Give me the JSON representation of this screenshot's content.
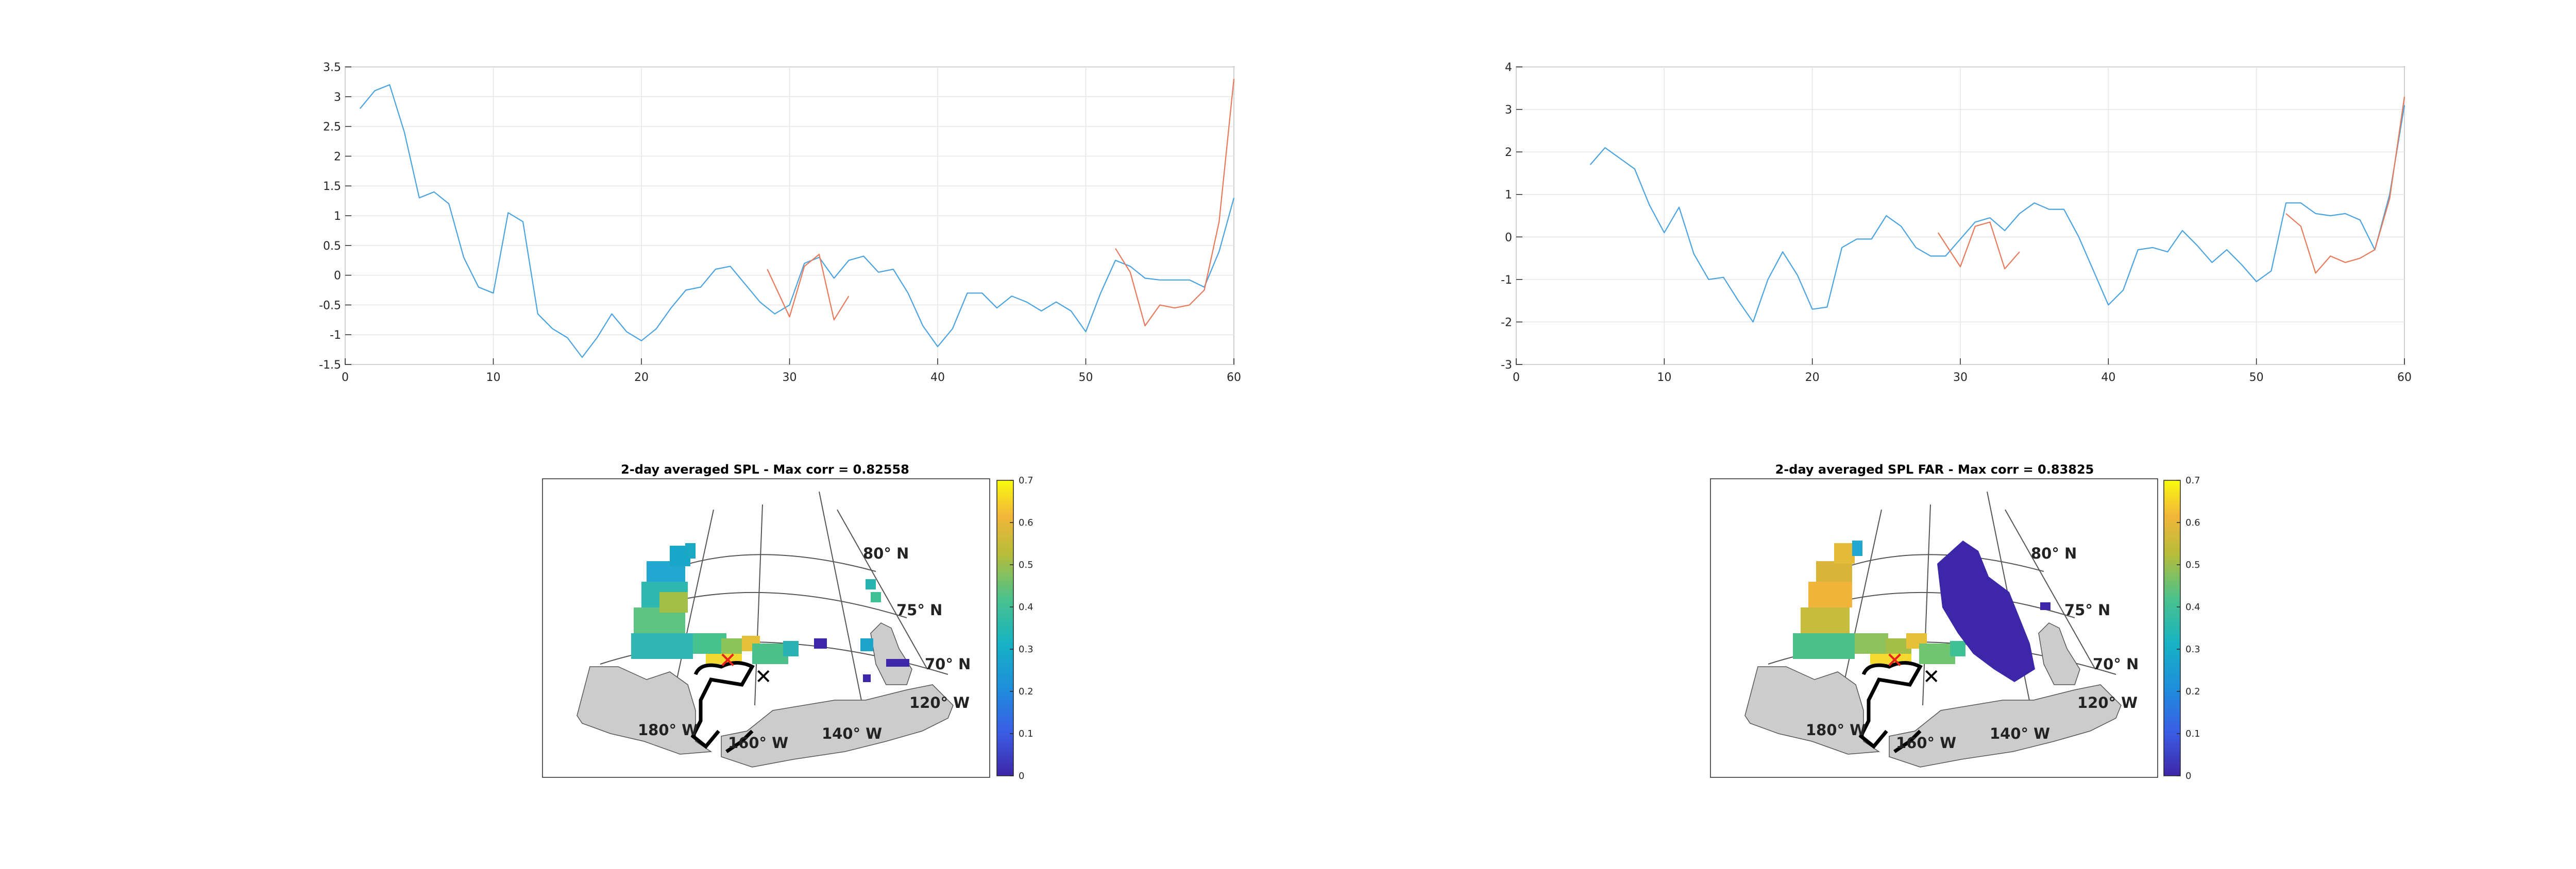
{
  "chart_data": [
    {
      "type": "line",
      "panel": "top-left",
      "xlim": [
        0,
        60
      ],
      "ylim": [
        -1.5,
        3.5
      ],
      "xticks": [
        0,
        10,
        20,
        30,
        40,
        50,
        60
      ],
      "yticks": [
        -1.5,
        -1,
        -0.5,
        0,
        0.5,
        1,
        1.5,
        2,
        2.5,
        3,
        3.5
      ],
      "xtick_labels": [
        "0",
        "10",
        "20",
        "30",
        "40",
        "50",
        "60"
      ],
      "ytick_labels": [
        "-1.5",
        "-1",
        "-0.5",
        "0",
        "0.5",
        "1",
        "1.5",
        "2",
        "2.5",
        "3",
        "3.5"
      ],
      "grid": true,
      "series": [
        {
          "color": "#4aa3df",
          "x": [
            1,
            2,
            3,
            4,
            5,
            6,
            7,
            8,
            9,
            10,
            11,
            12,
            13,
            14,
            15,
            16,
            17,
            18,
            19,
            20,
            21,
            22,
            23,
            24,
            25,
            26,
            27,
            28,
            29,
            30,
            31,
            32,
            33,
            34,
            35,
            36,
            37,
            38,
            39,
            40,
            41,
            42,
            43,
            44,
            45,
            46,
            47,
            48,
            49,
            50,
            51,
            52,
            53,
            54,
            55,
            56,
            57,
            58,
            59,
            60
          ],
          "y": [
            2.8,
            3.1,
            3.2,
            2.4,
            1.3,
            1.4,
            1.2,
            0.3,
            -0.2,
            -0.3,
            1.05,
            0.9,
            -0.65,
            -0.9,
            -1.05,
            -1.38,
            -1.05,
            -0.65,
            -0.95,
            -1.1,
            -0.9,
            -0.55,
            -0.25,
            -0.2,
            0.1,
            0.15,
            -0.15,
            -0.45,
            -0.65,
            -0.5,
            0.2,
            0.3,
            -0.05,
            0.25,
            0.32,
            0.05,
            0.1,
            -0.3,
            -0.85,
            -1.2,
            -0.9,
            -0.3,
            -0.3,
            -0.55,
            -0.35,
            -0.45,
            -0.6,
            -0.45,
            -0.6,
            -0.95,
            -0.3,
            0.25,
            0.15,
            -0.05,
            -0.08,
            -0.08,
            -0.08,
            -0.2,
            0.4,
            1.3
          ]
        },
        {
          "color": "#e8795a",
          "x": [
            28.5,
            30,
            31,
            32,
            33,
            34
          ],
          "y": [
            0.1,
            -0.7,
            0.15,
            0.35,
            -0.75,
            -0.35
          ]
        },
        {
          "color": "#e8795a",
          "x": [
            52,
            53,
            54,
            55,
            56,
            57,
            58,
            59,
            60
          ],
          "y": [
            0.45,
            0.05,
            -0.85,
            -0.5,
            -0.55,
            -0.5,
            -0.25,
            0.9,
            3.3
          ]
        }
      ]
    },
    {
      "type": "line",
      "panel": "top-right",
      "xlim": [
        0,
        60
      ],
      "ylim": [
        -3,
        4
      ],
      "xticks": [
        0,
        10,
        20,
        30,
        40,
        50,
        60
      ],
      "yticks": [
        -3,
        -2,
        -1,
        0,
        1,
        2,
        3,
        4
      ],
      "xtick_labels": [
        "0",
        "10",
        "20",
        "30",
        "40",
        "50",
        "60"
      ],
      "ytick_labels": [
        "-3",
        "-2",
        "-1",
        "0",
        "1",
        "2",
        "3",
        "4"
      ],
      "grid": true,
      "series": [
        {
          "color": "#4aa3df",
          "x": [
            5,
            6,
            7,
            8,
            9,
            10,
            11,
            12,
            13,
            14,
            15,
            16,
            17,
            18,
            19,
            20,
            21,
            22,
            23,
            24,
            25,
            26,
            27,
            28,
            29,
            30,
            31,
            32,
            33,
            34,
            35,
            36,
            37,
            38,
            39,
            40,
            41,
            42,
            43,
            44,
            45,
            46,
            47,
            48,
            49,
            50,
            51,
            52,
            53,
            54,
            55,
            56,
            57,
            58,
            59,
            60
          ],
          "y": [
            1.7,
            2.1,
            1.85,
            1.6,
            0.75,
            0.1,
            0.7,
            -0.4,
            -1.0,
            -0.95,
            -1.5,
            -2.0,
            -1.0,
            -0.35,
            -0.9,
            -1.7,
            -1.65,
            -0.25,
            -0.05,
            -0.05,
            0.5,
            0.25,
            -0.25,
            -0.45,
            -0.45,
            -0.05,
            0.35,
            0.45,
            0.15,
            0.55,
            0.8,
            0.65,
            0.65,
            0.0,
            -0.8,
            -1.6,
            -1.25,
            -0.3,
            -0.25,
            -0.35,
            0.15,
            -0.2,
            -0.6,
            -0.3,
            -0.65,
            -1.05,
            -0.8,
            0.8,
            0.8,
            0.55,
            0.5,
            0.55,
            0.4,
            -0.3,
            1.0,
            3.1
          ]
        },
        {
          "color": "#e8795a",
          "x": [
            28.5,
            30,
            31,
            32,
            33,
            34
          ],
          "y": [
            0.1,
            -0.7,
            0.25,
            0.35,
            -0.75,
            -0.35
          ]
        },
        {
          "color": "#e8795a",
          "x": [
            52,
            53,
            54,
            55,
            56,
            57,
            58,
            59,
            60
          ],
          "y": [
            0.55,
            0.25,
            -0.85,
            -0.45,
            -0.6,
            -0.5,
            -0.3,
            0.9,
            3.3
          ]
        }
      ]
    },
    {
      "type": "heatmap",
      "panel": "bottom-left",
      "title": "2-day averaged SPL - Max corr = 0.82558",
      "colorbar": {
        "min": 0,
        "max": 0.7,
        "ticks": [
          "0",
          "0.1",
          "0.2",
          "0.3",
          "0.4",
          "0.5",
          "0.6",
          "0.7"
        ]
      },
      "grid_labels": [
        "80° N",
        "75° N",
        "70° N",
        "120° W",
        "140° W",
        "160° W",
        "180° W"
      ]
    },
    {
      "type": "heatmap",
      "panel": "bottom-right",
      "title": "2-day averaged SPL FAR - Max corr = 0.83825",
      "colorbar": {
        "min": 0,
        "max": 0.7,
        "ticks": [
          "0",
          "0.1",
          "0.2",
          "0.3",
          "0.4",
          "0.5",
          "0.6",
          "0.7"
        ]
      },
      "grid_labels": [
        "80° N",
        "75° N",
        "70° N",
        "120° W",
        "140° W",
        "160° W",
        "180° W"
      ]
    }
  ],
  "colors": {
    "blue_series": "#4aa3df",
    "orange_series": "#e8795a",
    "land": "#cccccc",
    "coast": "#000000",
    "map_low": "#3e26a8",
    "map_mid": "#35b779",
    "map_high": "#f9fb0e",
    "x_marker_red": "#e8231c",
    "x_marker_black": "#000000"
  }
}
